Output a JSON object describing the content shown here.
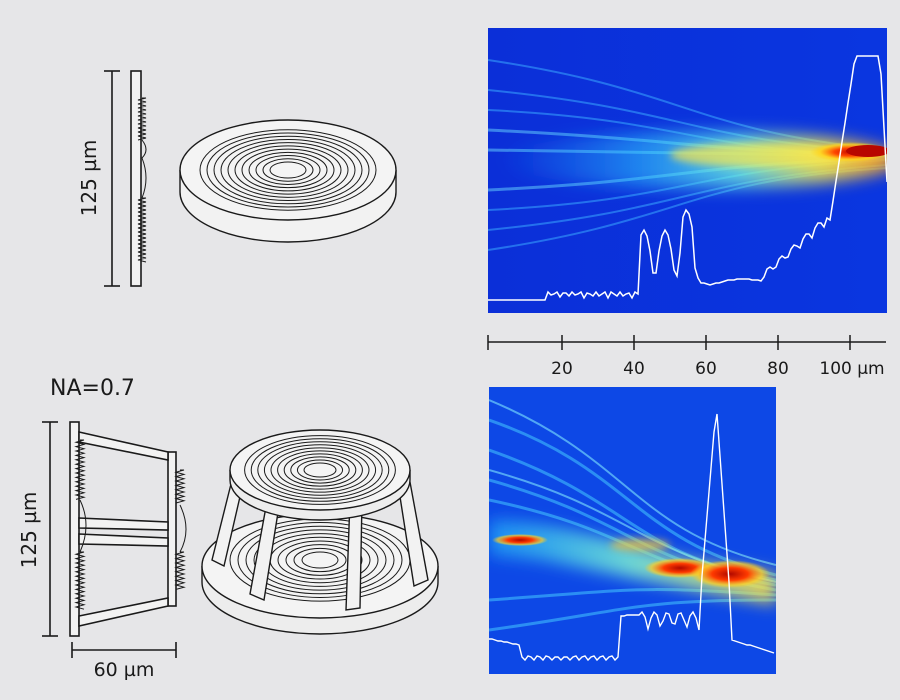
{
  "top": {
    "height_label": "125 µm",
    "scale_ticks": [
      "20",
      "40",
      "60",
      "80",
      "100 µm"
    ]
  },
  "bottom": {
    "na_label": "NA=0.7",
    "height_label": "125 µm",
    "width_label": "60 µm"
  },
  "colors": {
    "background": "#e6e6e8",
    "line": "#1a1a1a",
    "map_low": "#0a2fd6",
    "map_mid": "#2ad2ff",
    "map_high": "#d81400",
    "profile": "#ffffff"
  }
}
